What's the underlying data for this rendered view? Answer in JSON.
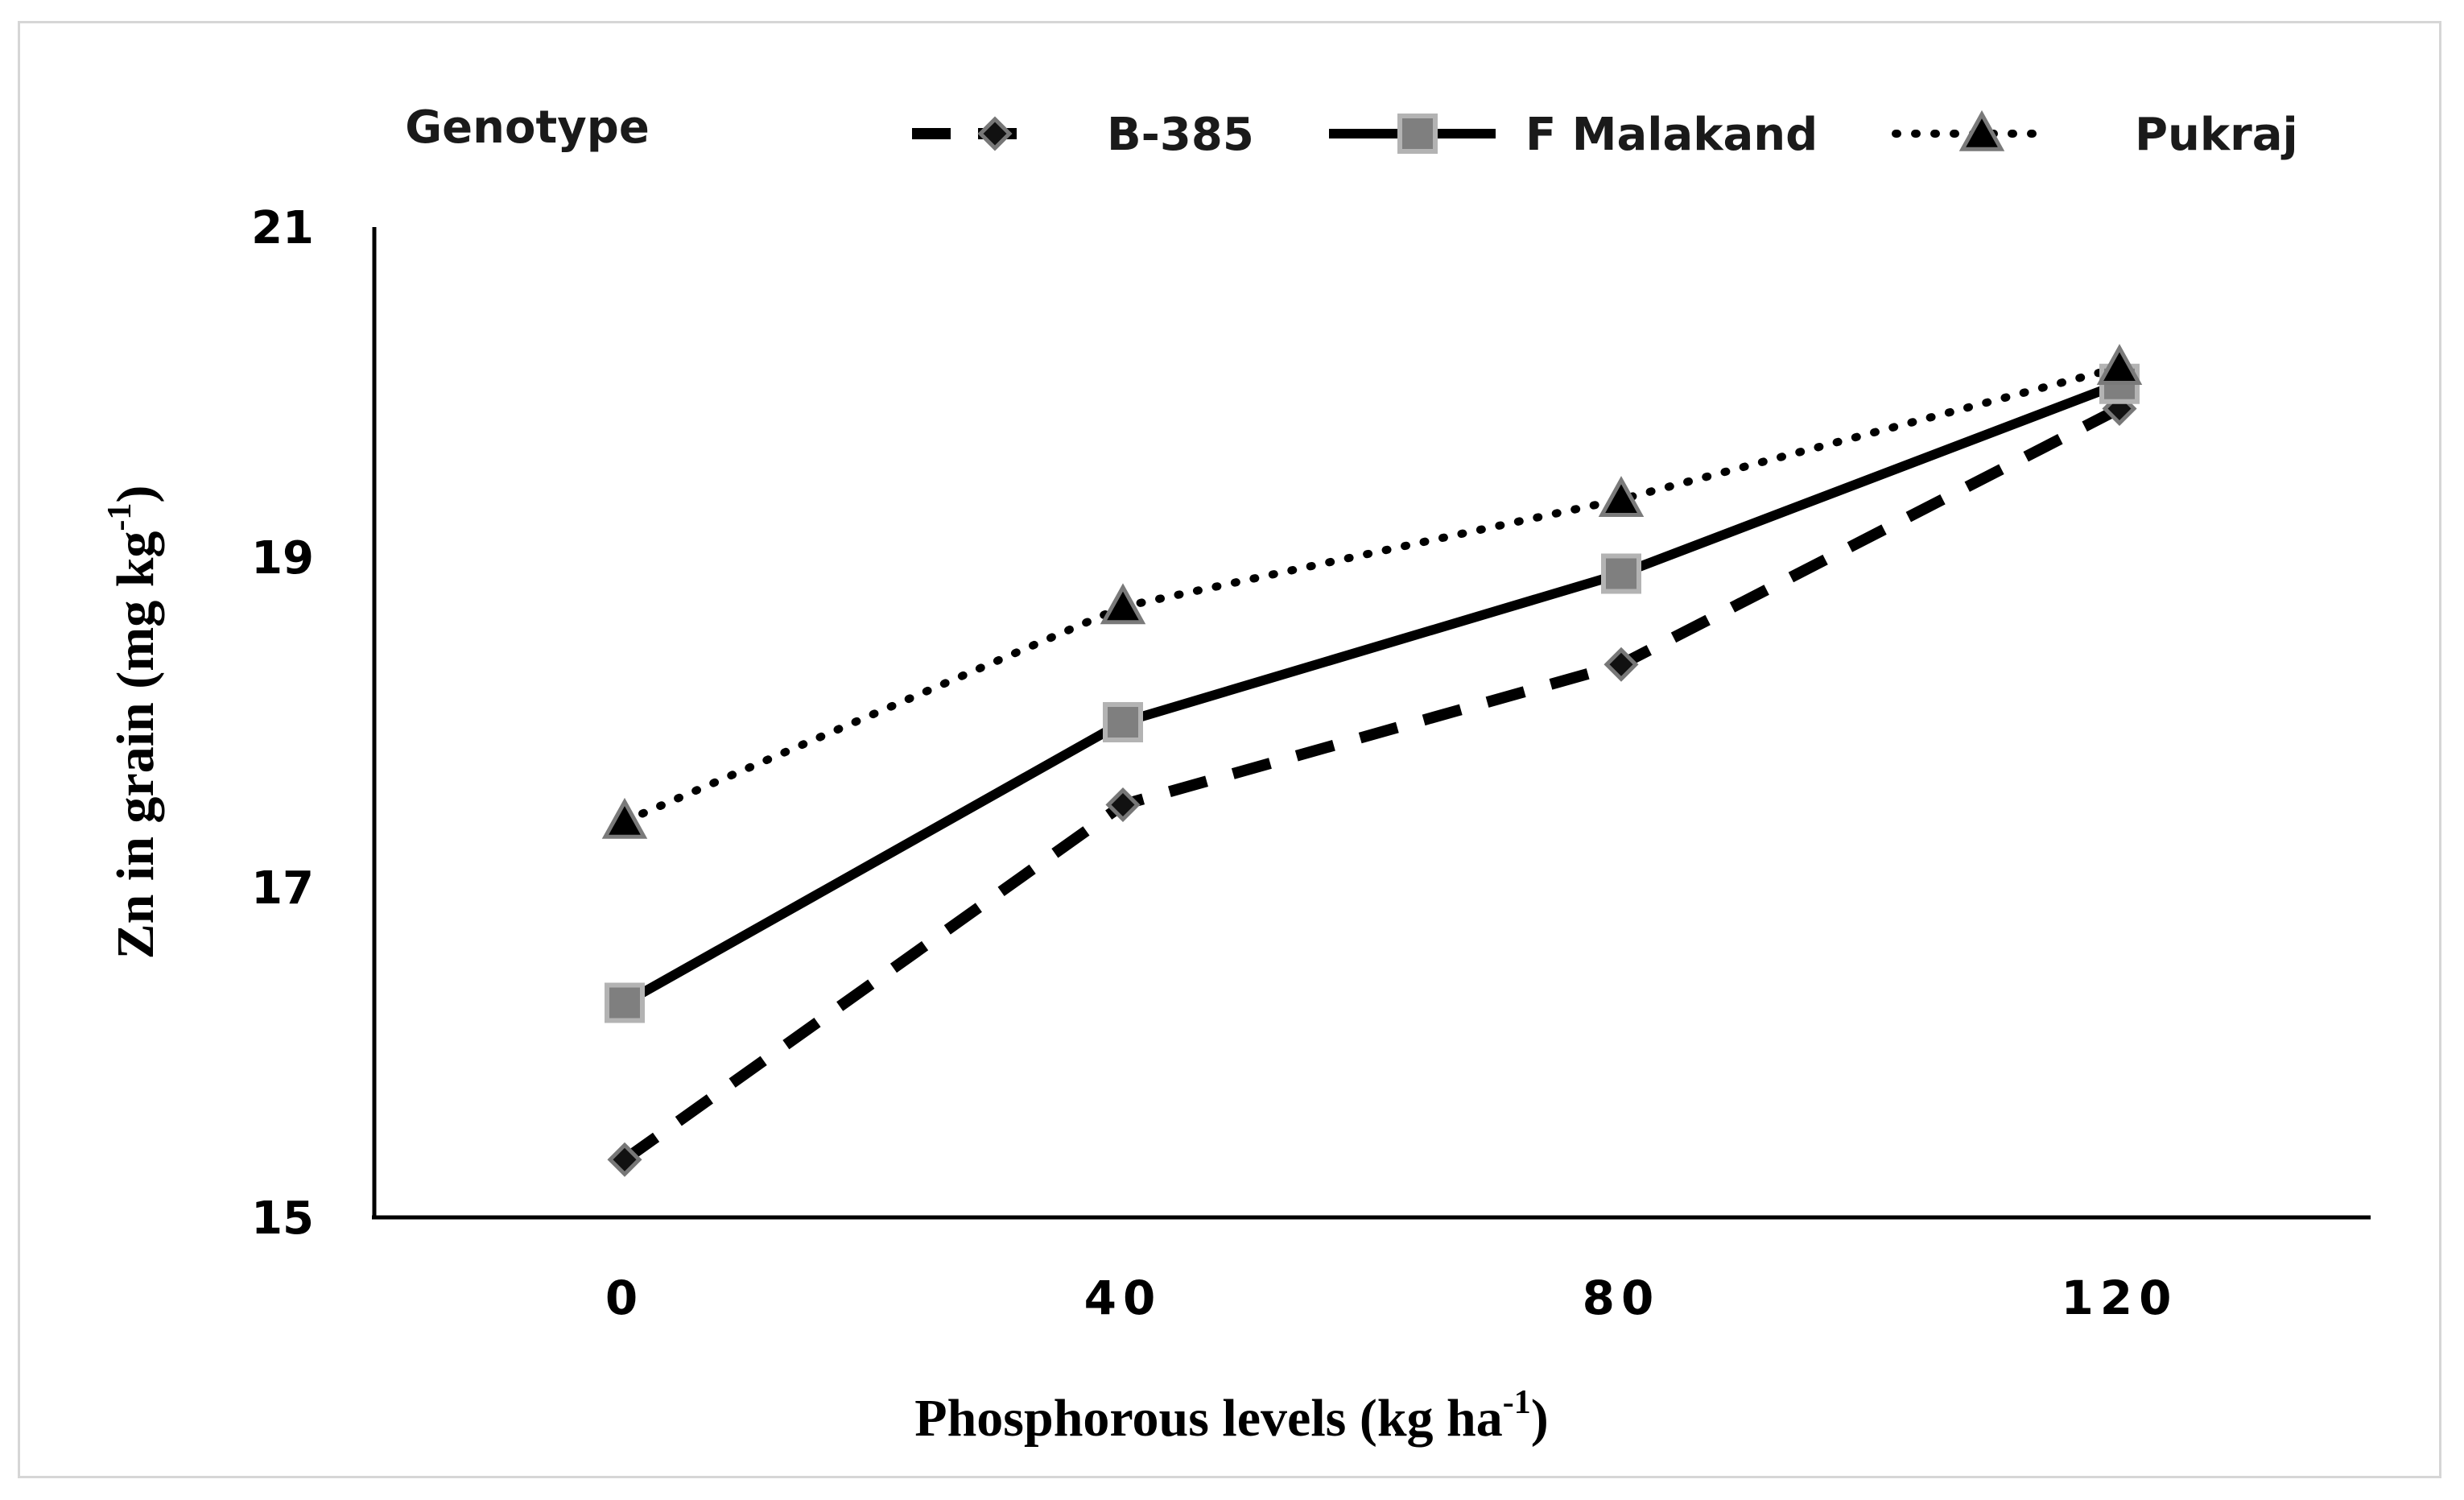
{
  "chart_data": {
    "type": "line",
    "title": "",
    "xlabel": "Phosphorous levels (kg ha",
    "xlabel_sup": "-1",
    "xlabel_close": ")",
    "ylabel": "Zn in grain (mg kg",
    "ylabel_sup": "-1",
    "ylabel_close": ")",
    "categories": [
      "0",
      "40",
      "80",
      "120"
    ],
    "yticks": [
      "15",
      "17",
      "19",
      "21"
    ],
    "ylim": [
      15,
      21
    ],
    "legend_title": "Genotype",
    "legend_position": "top",
    "grid": false,
    "series": [
      {
        "name": "B-385",
        "style": "dashed",
        "marker": "diamond",
        "values": [
          15.35,
          17.5,
          18.35,
          19.9
        ]
      },
      {
        "name": "F Malakand",
        "style": "solid",
        "marker": "square",
        "values": [
          16.3,
          18.0,
          18.9,
          20.05
        ]
      },
      {
        "name": "Pukraj",
        "style": "dotted",
        "marker": "triangle",
        "values": [
          17.4,
          18.7,
          19.35,
          20.15
        ]
      }
    ]
  }
}
